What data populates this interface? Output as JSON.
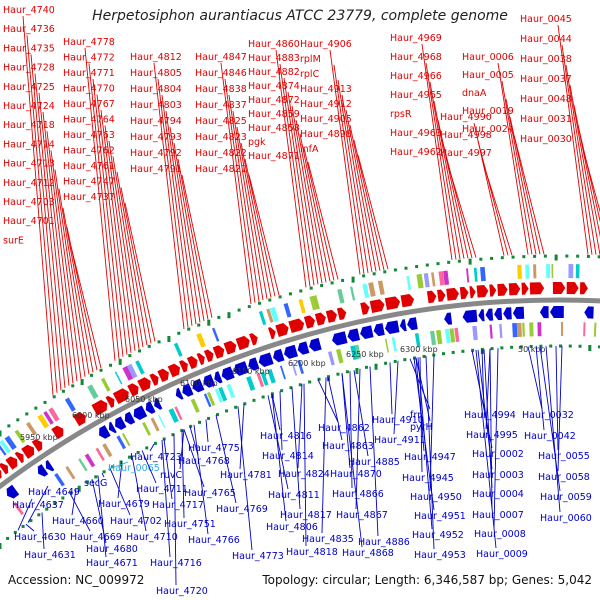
{
  "title": "Herpetosiphon aurantiacus ATCC 23779, complete genome",
  "accession": "Accession: NC_009972",
  "topology": "Topology: circular; Length: 6,346,587 bp; Genes: 5,042",
  "colors": {
    "forward": "#e00000",
    "reverse": "#0000cc",
    "highlight": "#33aadd",
    "backbone": "#888888",
    "gc_marks": "#118833"
  },
  "kbp_labels": [
    "5950 kbp",
    "6000 kbp",
    "6050 kbp",
    "6100 kbp",
    "6150 kbp",
    "6200 kbp",
    "6250 kbp",
    "6300 kbp",
    "50 kbp"
  ],
  "top_labels": [
    "Haur_4740",
    "Haur_4736",
    "Haur_4735",
    "Haur_4728",
    "Haur_4725",
    "Haur_4724",
    "Haur_4718",
    "Haur_4714",
    "Haur_4713",
    "Haur_4712",
    "Haur_4703",
    "Haur_4701",
    "surE",
    "Haur_4778",
    "Haur_4772",
    "Haur_4771",
    "Haur_4770",
    "Haur_4767",
    "Haur_4764",
    "Haur_4763",
    "Haur_4762",
    "Haur_4761",
    "Haur_4747",
    "Haur_4737",
    "Haur_4812",
    "Haur_4805",
    "Haur_4804",
    "Haur_4803",
    "Haur_4794",
    "Haur_4793",
    "Haur_4792",
    "Haur_4791",
    "Haur_4847",
    "Haur_4846",
    "Haur_4838",
    "Haur_4837",
    "Haur_4825",
    "Haur_4823",
    "Haur_4822",
    "Haur_4821",
    "Haur_4860",
    "Haur_4883",
    "Haur_4882",
    "Haur_4874",
    "Haur_4872",
    "Haur_4859",
    "Haur_4858",
    "pgk",
    "Haur_4871",
    "Haur_4906",
    "rplM",
    "rplC",
    "Haur_4913",
    "Haur_4912",
    "Haur_4905",
    "Haur_4898",
    "infA",
    "Haur_4969",
    "Haur_4968",
    "Haur_4966",
    "Haur_4965",
    "rpsR",
    "Haur_4963",
    "Haur_4962",
    "Haur_4990",
    "Haur_4998",
    "Haur_4997",
    "Haur_0006",
    "Haur_0005",
    "dnaA",
    "Haur_0019",
    "Haur_0024",
    "Haur_0045",
    "Haur_0044",
    "Haur_0038",
    "Haur_0037",
    "Haur_0048",
    "Haur_0031",
    "Haur_0030"
  ],
  "bottom_labels": [
    "Haur_4649",
    "Haur_4637",
    "Haur_4630",
    "Haur_4631",
    "Haur_4660",
    "Haur_4669",
    "Haur_4680",
    "Haur_4671",
    "secG",
    "Haur_4679",
    "Haur_4702",
    "Haur_4710",
    "Haur_4716",
    "Haur_4720",
    "Haur_4723",
    "Haur_0065",
    "Haur_4711",
    "Haur_4717",
    "Haur_4751",
    "ruvC",
    "Haur_4765",
    "Haur_4766",
    "Haur_4768",
    "Haur_4775",
    "Haur_4781",
    "Haur_4769",
    "Haur_4773",
    "Haur_4816",
    "Haur_4814",
    "Haur_4824",
    "Haur_4811",
    "Haur_4806",
    "Haur_4817",
    "Haur_4818",
    "Haur_4835",
    "Haur_4862",
    "Haur_4863",
    "Haur_4870",
    "Haur_4866",
    "Haur_4867",
    "Haur_4868",
    "Haur_4885",
    "Haur_4886",
    "Haur_4910",
    "Haur_4911",
    "frr",
    "pyrH",
    "Haur_4947",
    "Haur_4945",
    "Haur_4950",
    "Haur_4951",
    "Haur_4952",
    "Haur_4953",
    "Haur_4994",
    "Haur_4995",
    "Haur_0002",
    "Haur_0003",
    "Haur_0004",
    "Haur_0007",
    "Haur_0008",
    "Haur_0009",
    "Haur_0032",
    "Haur_0042",
    "Haur_0055",
    "Haur_0058",
    "Haur_0059",
    "Haur_0060"
  ]
}
